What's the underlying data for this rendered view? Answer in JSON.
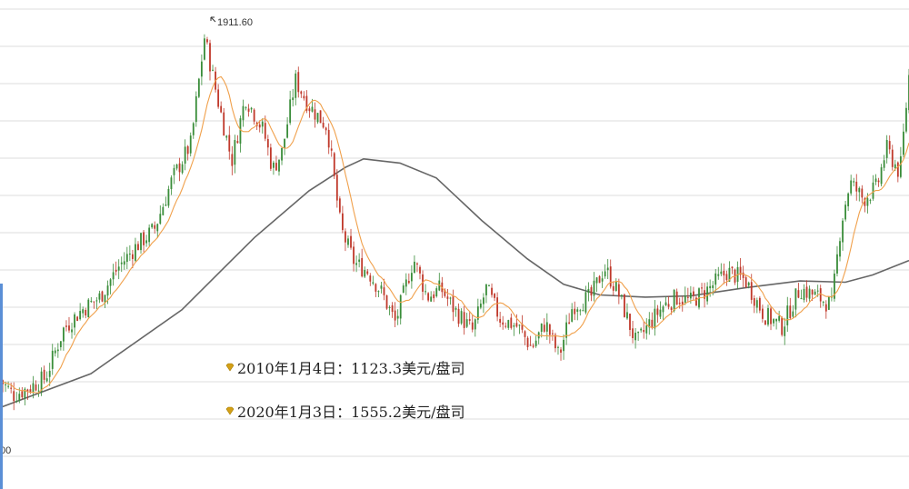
{
  "chart_data": {
    "type": "candlestick-line",
    "title": "",
    "xlabel": "",
    "ylabel": "",
    "y_tick_labels": [
      "00"
    ],
    "peak_label": "1911.60",
    "grid": "horizontal",
    "ylim": [
      930,
      1960
    ],
    "x_range": [
      0,
      100
    ],
    "price_path": [
      [
        0,
        1105
      ],
      [
        1.5,
        1070
      ],
      [
        3,
        1085
      ],
      [
        5,
        1110
      ],
      [
        7,
        1225
      ],
      [
        9,
        1270
      ],
      [
        11,
        1300
      ],
      [
        13,
        1370
      ],
      [
        15,
        1420
      ],
      [
        17,
        1460
      ],
      [
        19,
        1580
      ],
      [
        21,
        1660
      ],
      [
        22.5,
        1911.6
      ],
      [
        24,
        1760
      ],
      [
        25.5,
        1620
      ],
      [
        27,
        1770
      ],
      [
        29,
        1690
      ],
      [
        30,
        1600
      ],
      [
        31,
        1640
      ],
      [
        32.5,
        1810
      ],
      [
        34,
        1750
      ],
      [
        36,
        1700
      ],
      [
        37.5,
        1460
      ],
      [
        39,
        1380
      ],
      [
        40.5,
        1360
      ],
      [
        42,
        1310
      ],
      [
        43.5,
        1240
      ],
      [
        45.5,
        1390
      ],
      [
        47,
        1300
      ],
      [
        48.5,
        1320
      ],
      [
        50,
        1270
      ],
      [
        52,
        1220
      ],
      [
        53.5,
        1320
      ],
      [
        55,
        1250
      ],
      [
        57,
        1230
      ],
      [
        58.5,
        1180
      ],
      [
        60,
        1240
      ],
      [
        61.5,
        1160
      ],
      [
        63,
        1280
      ],
      [
        65,
        1300
      ],
      [
        66.5,
        1370
      ],
      [
        68,
        1310
      ],
      [
        70,
        1190
      ],
      [
        71.5,
        1240
      ],
      [
        73,
        1280
      ],
      [
        74.5,
        1300
      ],
      [
        76,
        1290
      ],
      [
        78,
        1320
      ],
      [
        80,
        1360
      ],
      [
        82,
        1340
      ],
      [
        84,
        1260
      ],
      [
        86,
        1230
      ],
      [
        88,
        1320
      ],
      [
        90,
        1300
      ],
      [
        91.5,
        1280
      ],
      [
        92.5,
        1470
      ],
      [
        93.5,
        1570
      ],
      [
        95,
        1530
      ],
      [
        96.5,
        1560
      ],
      [
        97.5,
        1650
      ],
      [
        99,
        1590
      ],
      [
        100,
        1820
      ]
    ],
    "long_moving_average": [
      [
        0,
        1040
      ],
      [
        10,
        1120
      ],
      [
        20,
        1270
      ],
      [
        28,
        1440
      ],
      [
        34,
        1550
      ],
      [
        38,
        1605
      ],
      [
        40,
        1625
      ],
      [
        44,
        1615
      ],
      [
        48,
        1580
      ],
      [
        53,
        1480
      ],
      [
        58,
        1390
      ],
      [
        62,
        1330
      ],
      [
        66,
        1305
      ],
      [
        71,
        1300
      ],
      [
        76,
        1303
      ],
      [
        82,
        1322
      ],
      [
        88,
        1338
      ],
      [
        93,
        1335
      ],
      [
        96,
        1352
      ],
      [
        100,
        1386
      ]
    ],
    "annotations": [
      "2010年1月4日：1123.3美元/盘司",
      "2020年1月3日：1555.2美元/盘司"
    ],
    "colors": {
      "up_candle": "#3a8d3a",
      "down_candle": "#c0392b",
      "short_ma": "#f0a04b",
      "long_ma": "#666666",
      "grid": "#dedede",
      "bullet": "#d4a017"
    }
  }
}
